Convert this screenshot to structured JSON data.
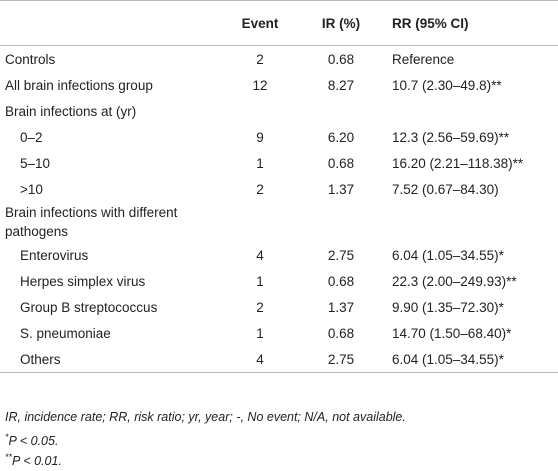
{
  "table": {
    "headers": [
      "",
      "Event",
      "IR (%)",
      "RR (95% CI)"
    ],
    "rows": [
      {
        "label": "Controls",
        "event": "2",
        "ir": "0.68",
        "rr": "Reference"
      },
      {
        "label": "All brain infections group",
        "event": "12",
        "ir": "8.27",
        "rr": "10.7 (2.30–49.8)**"
      },
      {
        "label": "Brain infections at (yr)",
        "event": "",
        "ir": "",
        "rr": ""
      },
      {
        "label": "0–2",
        "event": "9",
        "ir": "6.20",
        "rr": "12.3 (2.56–59.69)**"
      },
      {
        "label": "5–10",
        "event": "1",
        "ir": "0.68",
        "rr": "16.20 (2.21–118.38)**"
      },
      {
        "label": ">10",
        "event": "2",
        "ir": "1.37",
        "rr": "7.52 (0.67–84.30)"
      },
      {
        "label": "Brain infections with different pathogens",
        "event": "",
        "ir": "",
        "rr": ""
      },
      {
        "label": "Enterovirus",
        "event": "4",
        "ir": "2.75",
        "rr": "6.04 (1.05–34.55)*"
      },
      {
        "label": "Herpes simplex virus",
        "event": "1",
        "ir": "0.68",
        "rr": "22.3 (2.00–249.93)**"
      },
      {
        "label": "Group B streptococcus",
        "event": "2",
        "ir": "1.37",
        "rr": "9.90 (1.35–72.30)*"
      },
      {
        "label": "S. pneumoniae",
        "event": "1",
        "ir": "0.68",
        "rr": "14.70 (1.50–68.40)*"
      },
      {
        "label": "Others",
        "event": "4",
        "ir": "2.75",
        "rr": "6.04 (1.05–34.55)*"
      }
    ]
  },
  "footnotes": {
    "abbreviations": "IR, incidence rate; RR, risk ratio; yr, year; -, No event; N/A, not available.",
    "p05_marker": "*",
    "p05_text": "P < 0.05.",
    "p01_marker": "**",
    "p01_text": "P < 0.01."
  }
}
